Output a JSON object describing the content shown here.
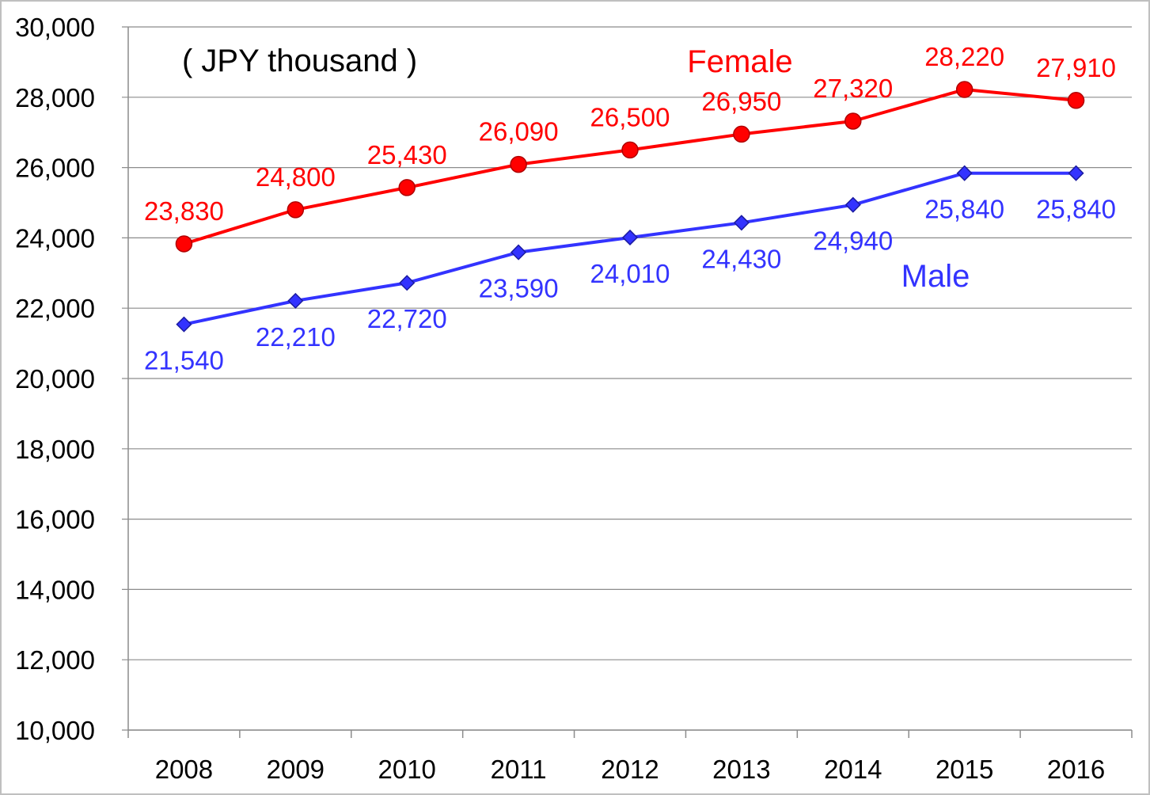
{
  "chart_data": {
    "type": "line",
    "title": "",
    "unit_note": "( JPY thousand )",
    "xlabel": "",
    "ylabel": "",
    "categories": [
      "2008",
      "2009",
      "2010",
      "2011",
      "2012",
      "2013",
      "2014",
      "2015",
      "2016"
    ],
    "ylim": [
      10000,
      30000
    ],
    "ytick_step": 2000,
    "ytick_labels": [
      "10,000",
      "12,000",
      "14,000",
      "16,000",
      "18,000",
      "20,000",
      "22,000",
      "24,000",
      "26,000",
      "28,000",
      "30,000"
    ],
    "grid": true,
    "legend": "none (series names placed near lines)",
    "series": [
      {
        "name": "Female",
        "color": "#ff0000",
        "marker": "circle",
        "values": [
          23830,
          24800,
          25430,
          26090,
          26500,
          26950,
          27320,
          28220,
          27910
        ],
        "labels": [
          "23,830",
          "24,800",
          "25,430",
          "26,090",
          "26,500",
          "26,950",
          "27,320",
          "28,220",
          "27,910"
        ]
      },
      {
        "name": "Male",
        "color": "#3333ff",
        "marker": "diamond",
        "values": [
          21540,
          22210,
          22720,
          23590,
          24010,
          24430,
          24940,
          25840,
          25840
        ],
        "labels": [
          "21,540",
          "22,210",
          "22,720",
          "23,590",
          "24,010",
          "24,430",
          "24,940",
          "25,840",
          "25,840"
        ]
      }
    ]
  }
}
